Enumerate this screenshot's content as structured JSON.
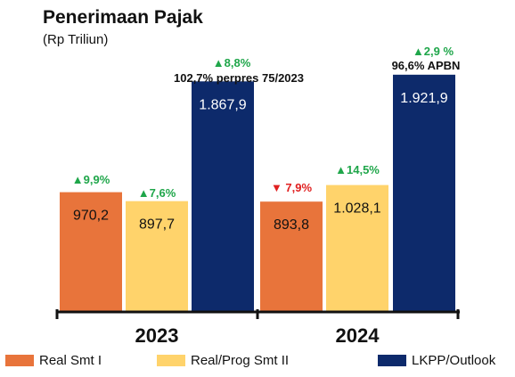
{
  "title": "Penerimaan Pajak",
  "subtitle": "(Rp Triliun)",
  "colors": {
    "real_smt1": "#E8743B",
    "real_prog_smt2": "#FFD36B",
    "lkpp_outlook": "#0D2A6B",
    "up": "#1FA64A",
    "down": "#E02020"
  },
  "chart_data": {
    "type": "bar",
    "categories": [
      "2023",
      "2024"
    ],
    "ylim": [
      0,
      2200
    ],
    "series": [
      {
        "name": "Real Smt I",
        "values": [
          970.2,
          893.8
        ],
        "labels": [
          "970,2",
          "893,8"
        ],
        "growth": [
          {
            "dir": "up",
            "text": "9,9%"
          },
          {
            "dir": "down",
            "text": "7,9%"
          }
        ]
      },
      {
        "name": "Real/Prog Smt II",
        "values": [
          897.7,
          1028.1
        ],
        "labels": [
          "897,7",
          "1.028,1"
        ],
        "growth": [
          {
            "dir": "up",
            "text": "7,6%"
          },
          {
            "dir": "up",
            "text": "14,5%"
          }
        ]
      },
      {
        "name": "LKPP/Outlook",
        "values": [
          1867.9,
          1921.9
        ],
        "labels": [
          "1.867,9",
          "1.921,9"
        ],
        "growth": [
          {
            "dir": "up",
            "text": "8,8%"
          },
          {
            "dir": "up",
            "text": "2,9 %"
          }
        ]
      }
    ],
    "annotations": [
      "102,7% perpres 75/2023",
      "96,6% APBN"
    ],
    "grid": false,
    "legend": "bottom"
  }
}
